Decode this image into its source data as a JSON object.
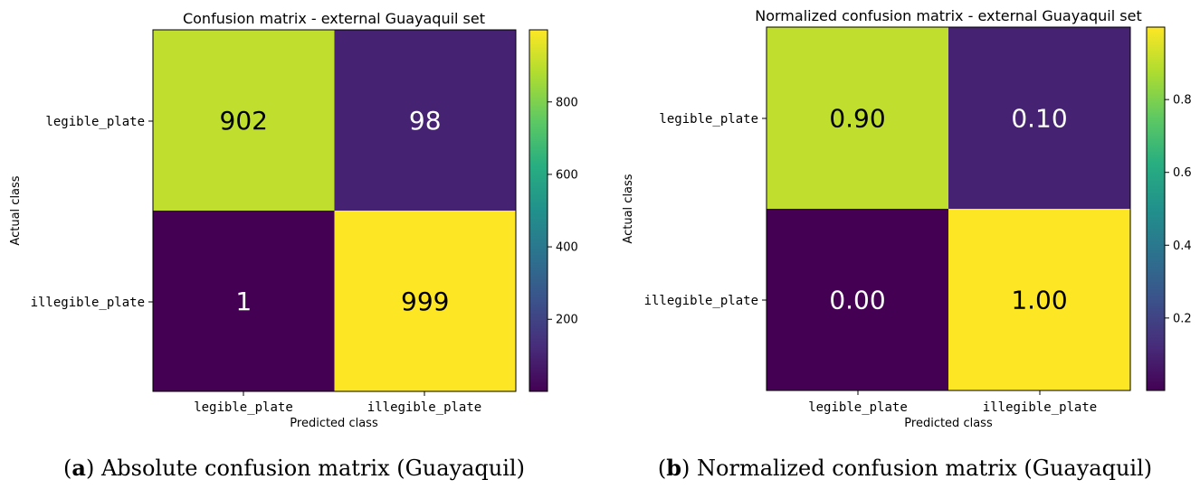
{
  "chart_data": [
    {
      "type": "heatmap",
      "title": "Confusion matrix - external Guayaquil set",
      "xlabel": "Predicted class",
      "ylabel": "Actual class",
      "x_categories": [
        "legible_plate",
        "illegible_plate"
      ],
      "y_categories": [
        "legible_plate",
        "illegible_plate"
      ],
      "values": [
        [
          902,
          98
        ],
        [
          1,
          999
        ]
      ],
      "cell_labels": [
        [
          "902",
          "98"
        ],
        [
          "1",
          "999"
        ]
      ],
      "colormap": "viridis",
      "color_range": [
        1,
        999
      ],
      "colorbar_ticks": [
        200,
        400,
        600,
        800
      ],
      "colorbar_tick_labels": [
        "200",
        "400",
        "600",
        "800"
      ],
      "caption_letter": "a",
      "caption_text": "Absolute confusion matrix (Guayaquil)"
    },
    {
      "type": "heatmap",
      "title": "Normalized confusion matrix - external Guayaquil set",
      "xlabel": "Predicted class",
      "ylabel": "Actual class",
      "x_categories": [
        "legible_plate",
        "illegible_plate"
      ],
      "y_categories": [
        "legible_plate",
        "illegible_plate"
      ],
      "values": [
        [
          0.902,
          0.098
        ],
        [
          0.001,
          0.999
        ]
      ],
      "cell_labels": [
        [
          "0.90",
          "0.10"
        ],
        [
          "0.00",
          "1.00"
        ]
      ],
      "colormap": "viridis",
      "color_range": [
        0.001,
        0.999
      ],
      "colorbar_ticks": [
        0.2,
        0.4,
        0.6,
        0.8
      ],
      "colorbar_tick_labels": [
        "0.2",
        "0.4",
        "0.6",
        "0.8"
      ],
      "caption_letter": "b",
      "caption_text": "Normalized confusion matrix (Guayaquil)"
    }
  ]
}
